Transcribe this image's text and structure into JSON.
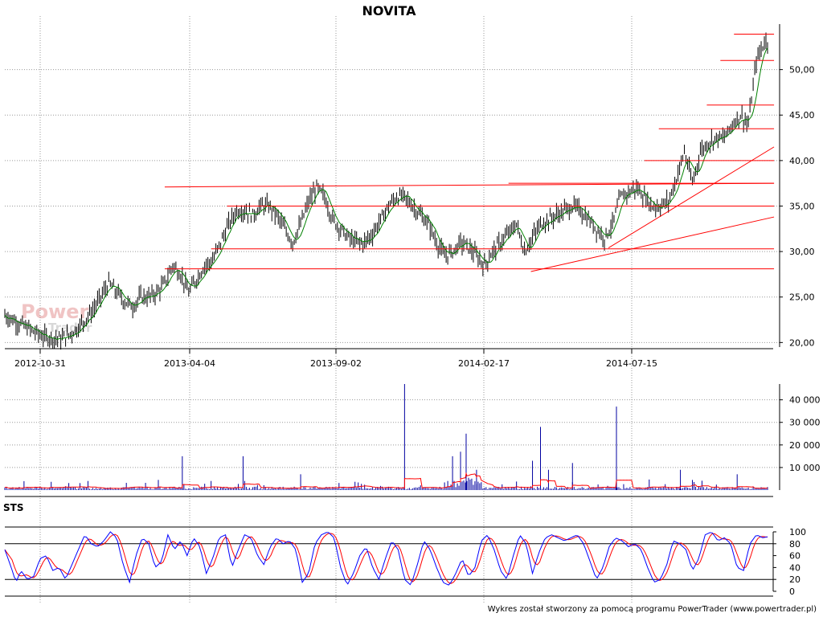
{
  "chart_data": [
    {
      "type": "candlestick",
      "title": "NOVITA",
      "x_tick_labels": [
        "2012-10-31",
        "2013-04-04",
        "2013-09-02",
        "2014-02-17",
        "2014-07-15"
      ],
      "y_tick_labels": [
        "20,00",
        "25,00",
        "30,00",
        "35,00",
        "40,00",
        "45,00",
        "50,00"
      ],
      "ylim": [
        19.5,
        55
      ],
      "grid": true,
      "series": [
        {
          "kind": "price",
          "x": [
            0,
            10,
            20,
            30,
            40,
            50,
            60,
            70,
            80,
            90,
            100,
            110,
            120,
            130,
            140,
            150,
            160,
            170,
            180,
            190,
            200,
            210,
            220,
            230,
            240,
            250,
            260,
            270,
            280,
            290,
            300,
            310,
            320,
            330,
            340,
            350,
            360,
            370,
            380,
            390,
            400,
            410,
            420,
            430,
            440,
            450,
            460,
            470,
            480,
            490,
            500,
            510,
            520,
            530,
            540,
            550,
            560,
            570,
            580,
            590,
            600,
            610,
            620,
            630,
            640,
            650,
            660,
            670,
            680,
            690,
            700,
            710,
            720,
            730,
            740,
            750,
            760,
            770,
            780,
            790,
            800,
            810,
            820,
            830,
            840,
            850,
            860,
            870,
            880,
            890,
            900,
            910,
            920,
            930,
            940,
            950
          ],
          "values": [
            23.0,
            22.5,
            22.0,
            21.5,
            21.0,
            20.6,
            20.5,
            20.4,
            20.8,
            21.5,
            22.5,
            23.5,
            25.0,
            26.5,
            25.5,
            24.5,
            24.0,
            25.0,
            25.0,
            25.5,
            26.5,
            28.5,
            27.5,
            25.5,
            27.0,
            28.5,
            29.0,
            31.0,
            33.0,
            34.5,
            34.5,
            34.0,
            35.0,
            35.0,
            34.0,
            32.5,
            31.0,
            33.0,
            35.5,
            37.0,
            36.0,
            33.5,
            32.5,
            31.5,
            31.0,
            31.0,
            32.0,
            33.5,
            35.0,
            36.0,
            36.0,
            35.0,
            34.0,
            33.0,
            31.0,
            29.5,
            30.0,
            31.0,
            30.5,
            29.5,
            28.5,
            30.0,
            31.0,
            32.0,
            33.0,
            30.0,
            31.5,
            33.0,
            33.5,
            34.0,
            34.5,
            35.0,
            34.5,
            33.5,
            32.5,
            31.5,
            33.0,
            36.0,
            36.5,
            37.0,
            36.0,
            35.0,
            35.0,
            35.5,
            38.0,
            41.0,
            37.5,
            41.0,
            42.0,
            42.5,
            42.5,
            44.0,
            45.0,
            44.0,
            51.0,
            53.0
          ]
        },
        {
          "kind": "moving-average",
          "color": "#008000"
        }
      ],
      "horizontal_lines": [
        {
          "y": 53.9,
          "x_range": [
            912,
            942
          ]
        },
        {
          "y": 51.0,
          "x_range": [
            895,
            942
          ]
        },
        {
          "y": 46.1,
          "x_range": [
            878,
            942
          ]
        },
        {
          "y": 43.5,
          "x_range": [
            818,
            942
          ]
        },
        {
          "y": 40.0,
          "x_range": [
            800,
            942
          ]
        },
        {
          "y": 37.5,
          "x_range": [
            630,
            942
          ]
        },
        {
          "y": 35.0,
          "x_range": [
            278,
            942
          ]
        },
        {
          "y": 30.3,
          "x_range": [
            258,
            942
          ]
        },
        {
          "y": 28.1,
          "x_range": [
            200,
            942
          ]
        }
      ],
      "trend_lines": [
        {
          "x": [
            200,
            942
          ],
          "y": [
            37.1,
            37.5
          ]
        },
        {
          "x": [
            658,
            942
          ],
          "y": [
            27.8,
            33.8
          ]
        },
        {
          "x": [
            755,
            942
          ],
          "y": [
            30.4,
            41.5
          ]
        }
      ]
    },
    {
      "type": "bar",
      "kind": "volume",
      "y_tick_labels": [
        "10 000",
        "20 000",
        "30 000",
        "40 000"
      ],
      "ylim": [
        0,
        47000
      ],
      "grid": true,
      "spikes": [
        {
          "x": 222,
          "value": 15000
        },
        {
          "x": 298,
          "value": 15000
        },
        {
          "x": 370,
          "value": 7000
        },
        {
          "x": 500,
          "value": 47000
        },
        {
          "x": 560,
          "value": 15000
        },
        {
          "x": 570,
          "value": 17000
        },
        {
          "x": 577,
          "value": 25000
        },
        {
          "x": 590,
          "value": 9000
        },
        {
          "x": 660,
          "value": 13000
        },
        {
          "x": 670,
          "value": 28000
        },
        {
          "x": 680,
          "value": 9000
        },
        {
          "x": 710,
          "value": 12000
        },
        {
          "x": 765,
          "value": 37000
        },
        {
          "x": 845,
          "value": 9000
        },
        {
          "x": 916,
          "value": 7000
        }
      ],
      "average_color": "#ff0000"
    },
    {
      "type": "line",
      "kind": "oscillator",
      "panel_label": "STS",
      "y_tick_labels": [
        "0",
        "20",
        "40",
        "60",
        "80",
        "100"
      ],
      "ylim": [
        0,
        100
      ],
      "reference_lines": [
        20,
        80
      ],
      "series": [
        {
          "color": "#0000ff",
          "x": [
            0,
            8,
            14,
            20,
            28,
            36,
            44,
            52,
            60,
            68,
            76,
            84,
            92,
            100,
            108,
            116,
            124,
            132,
            140,
            148,
            156,
            164,
            172,
            180,
            188,
            196,
            204,
            212,
            220,
            228,
            236,
            244,
            252,
            260,
            268,
            276,
            284,
            292,
            300,
            308,
            316,
            324,
            332,
            340,
            348,
            356,
            364,
            372,
            380,
            388,
            396,
            404,
            412,
            420,
            428,
            436,
            444,
            452,
            460,
            468,
            476,
            484,
            492,
            500,
            508,
            516,
            524,
            532,
            540,
            548,
            556,
            564,
            572,
            580,
            588,
            596,
            604,
            612,
            620,
            628,
            636,
            644,
            652,
            660,
            668,
            676,
            684,
            692,
            700,
            708,
            716,
            724,
            732,
            740,
            748,
            756,
            764,
            772,
            780,
            788,
            796,
            804,
            812,
            820,
            828,
            836,
            844,
            852,
            860,
            868,
            876,
            884,
            892,
            900,
            908,
            916,
            924,
            932,
            940,
            948,
            955
          ],
          "values": [
            70,
            40,
            15,
            35,
            20,
            25,
            55,
            60,
            35,
            40,
            20,
            45,
            70,
            95,
            80,
            75,
            85,
            100,
            90,
            45,
            15,
            60,
            90,
            80,
            40,
            50,
            95,
            70,
            85,
            60,
            90,
            75,
            30,
            55,
            90,
            95,
            40,
            70,
            95,
            90,
            60,
            45,
            75,
            90,
            80,
            85,
            70,
            15,
            30,
            80,
            95,
            100,
            90,
            40,
            10,
            30,
            60,
            75,
            40,
            20,
            55,
            85,
            70,
            20,
            10,
            45,
            85,
            70,
            40,
            15,
            10,
            30,
            55,
            25,
            40,
            85,
            95,
            70,
            35,
            20,
            60,
            95,
            80,
            30,
            65,
            90,
            95,
            90,
            85,
            90,
            95,
            80,
            50,
            20,
            40,
            75,
            90,
            85,
            75,
            80,
            70,
            40,
            15,
            20,
            45,
            85,
            80,
            70,
            35,
            55,
            95,
            100,
            85,
            90,
            80,
            40,
            35,
            80,
            95,
            90,
            92
          ]
        },
        {
          "color": "#ff0000"
        }
      ]
    }
  ],
  "watermark": {
    "line1": "Power",
    "line2": "Trader"
  },
  "footer": "Wykres został stworzony za pomocą programu PowerTrader (www.powertrader.pl)"
}
